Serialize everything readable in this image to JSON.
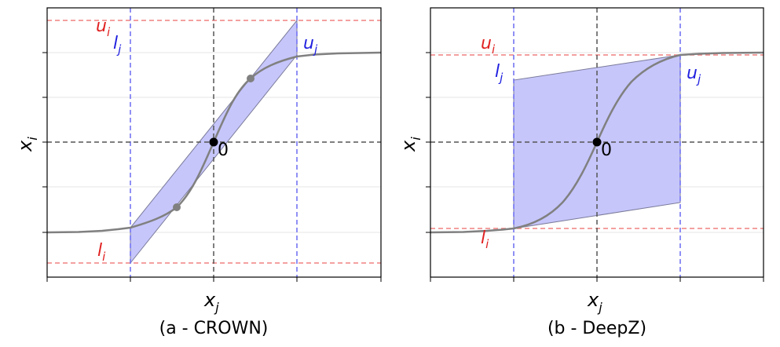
{
  "colors": {
    "upper_lower_bounds": "#f08080",
    "input_bounds": "#6b6bf2",
    "region_fill": "#c6c6fb",
    "curve": "#808080",
    "points": "#000000"
  },
  "panels": [
    {
      "caption": "(a - CROWN)",
      "x_axis_label": "x",
      "x_axis_sub": "j",
      "y_axis_label": "x",
      "y_axis_sub": "i",
      "origin_label": "0",
      "u_i": "u",
      "u_i_sub": "i",
      "l_i": "l",
      "l_i_sub": "i",
      "u_j": "u",
      "u_j_sub": "j",
      "l_j": "l",
      "l_j_sub": "j"
    },
    {
      "caption": "(b - DeepZ)",
      "x_axis_label": "x",
      "x_axis_sub": "j",
      "y_axis_label": "x",
      "y_axis_sub": "i",
      "origin_label": "0",
      "u_i": "u",
      "u_i_sub": "i",
      "l_i": "l",
      "l_i_sub": "i",
      "u_j": "u",
      "u_j_sub": "j",
      "l_j": "l",
      "l_j_sub": "j"
    }
  ]
}
